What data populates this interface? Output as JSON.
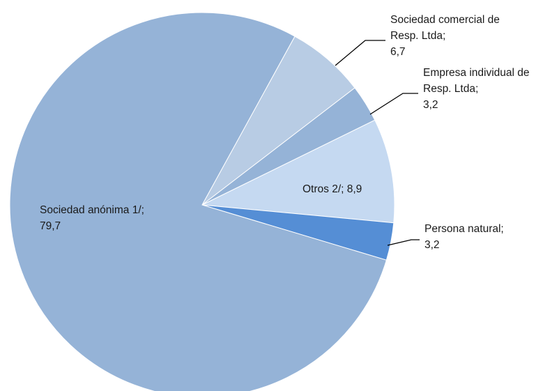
{
  "chart_data": {
    "type": "pie",
    "title": "",
    "start_category": "Sociedad comercial de Resp. Ltda",
    "slices": [
      {
        "category": "Sociedad comercial de Resp. Ltda",
        "value": 6.7,
        "label_lines": [
          "Sociedad comercial de",
          "Resp. Ltda;",
          "6,7"
        ],
        "color": "#b8cce4"
      },
      {
        "category": "Empresa individual de Resp. Ltda",
        "value": 3.2,
        "label_lines": [
          "Empresa individual de",
          "Resp. Ltda;",
          "3,2"
        ],
        "color": "#95b3d7"
      },
      {
        "category": "Otros 2/",
        "value": 8.9,
        "label_lines": [
          "Otros 2/; 8,9"
        ],
        "color": "#c5d9f1"
      },
      {
        "category": "Persona natural",
        "value": 3.2,
        "label_lines": [
          "Persona natural;",
          "3,2"
        ],
        "color": "#558ed5"
      },
      {
        "category": "Sociedad anónima 1/",
        "value": 79.7,
        "label_lines": [
          "Sociedad anónima 1/;",
          "79,7"
        ],
        "color": "#95b3d7"
      }
    ]
  }
}
